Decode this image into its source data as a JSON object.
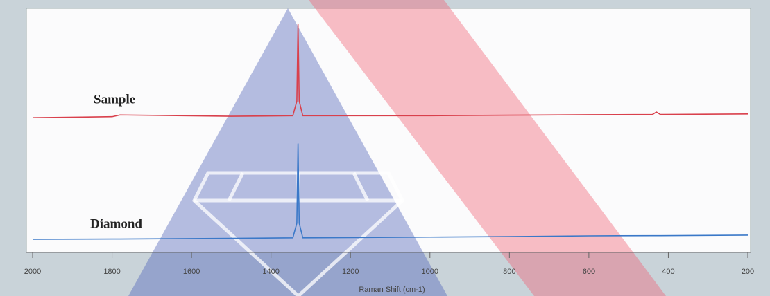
{
  "chart_data": {
    "type": "line",
    "x_label": "Raman Shift (cm-1)",
    "x": [
      2000,
      1800,
      1780,
      1500,
      1345,
      1335,
      1332,
      1329,
      1320,
      1000,
      800,
      600,
      440,
      430,
      420,
      200
    ],
    "series": [
      {
        "name": "Sample",
        "color": "#d9404c",
        "values": [
          55.2,
          55.6,
          56.3,
          55.8,
          56.0,
          62,
          93.5,
          62,
          56.0,
          56.0,
          56.2,
          56.4,
          56.5,
          57.5,
          56.5,
          56.7
        ]
      },
      {
        "name": "Diamond",
        "color": "#3a78c8",
        "values": [
          5.4,
          5.5,
          5.5,
          5.8,
          6.0,
          12,
          44.5,
          12,
          6.0,
          6.3,
          6.5,
          6.8,
          6.9,
          6.9,
          6.9,
          7.1
        ]
      }
    ],
    "xlim": [
      2000,
      200
    ],
    "ylim": [
      0,
      100
    ],
    "xticks": [
      2000,
      1800,
      1600,
      1400,
      1200,
      1000,
      800,
      600,
      400,
      200
    ]
  }
}
